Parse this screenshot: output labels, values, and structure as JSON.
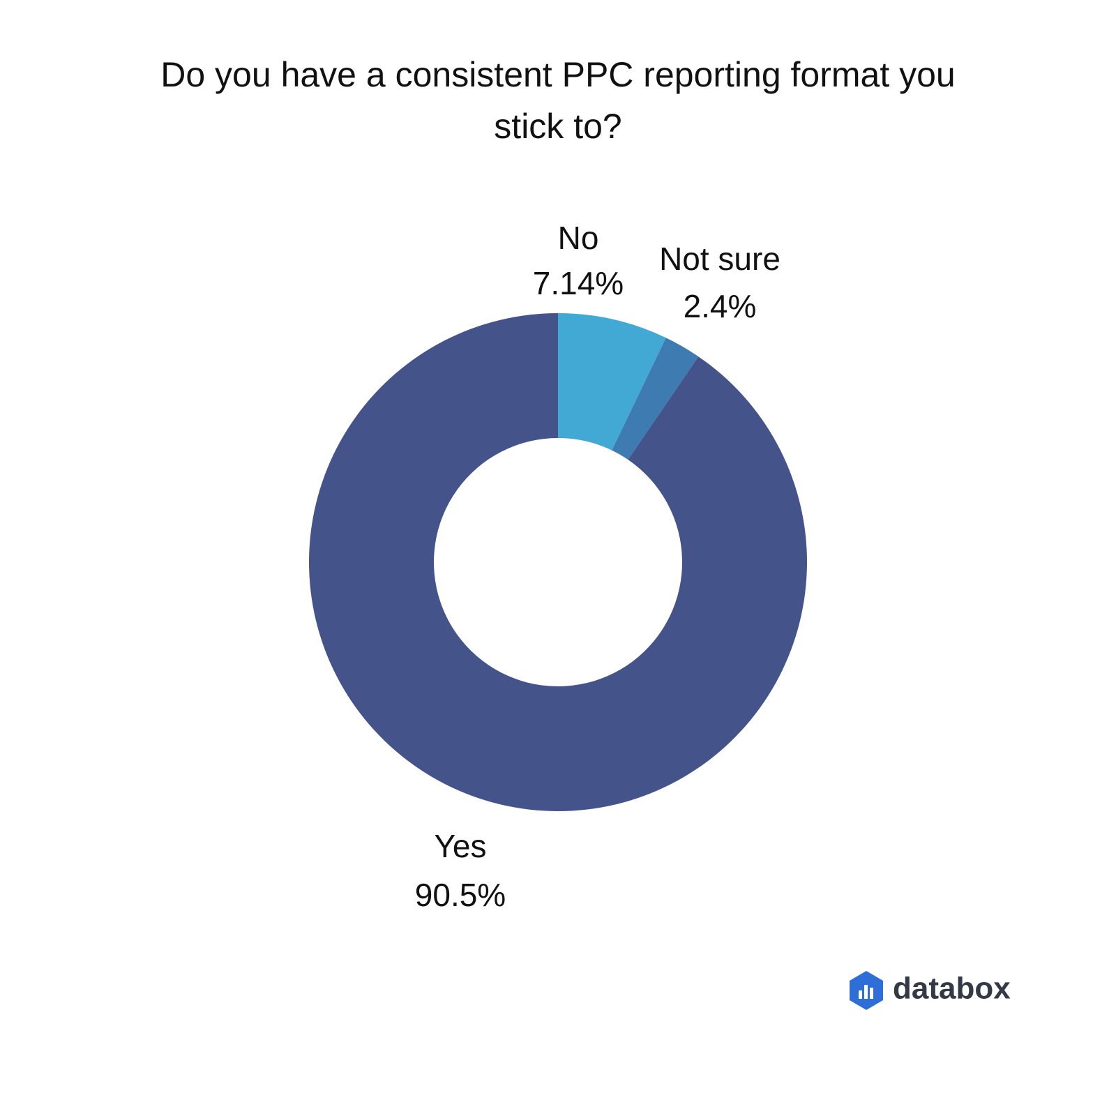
{
  "chart_data": {
    "type": "donut",
    "title": "Do you have a consistent PPC reporting format you stick to?",
    "categories": [
      "No",
      "Not sure",
      "Yes"
    ],
    "values": [
      7.14,
      2.4,
      90.5
    ],
    "value_labels": [
      "7.14%",
      "2.4%",
      "90.5%"
    ],
    "colors": [
      "#42a9d5",
      "#3d7bb1",
      "#44548b"
    ]
  },
  "logo": "databox"
}
